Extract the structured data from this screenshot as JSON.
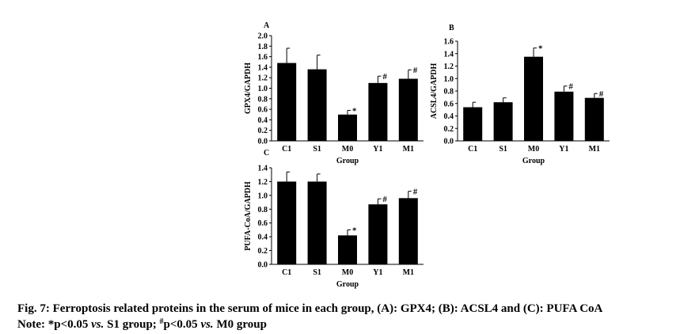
{
  "chart_data": [
    {
      "type": "bar",
      "panel_label": "A",
      "ylabel": "GPX4/GAPDH",
      "xlabel": "Group",
      "categories": [
        "C1",
        "S1",
        "M0",
        "Y1",
        "M1"
      ],
      "values": [
        1.48,
        1.36,
        0.5,
        1.1,
        1.18
      ],
      "errors": [
        0.28,
        0.27,
        0.08,
        0.13,
        0.17
      ],
      "markers": [
        null,
        null,
        "*",
        "#",
        "#"
      ],
      "color": "#000000",
      "ylim": [
        0,
        2
      ],
      "yticks": [
        {
          "value": 0,
          "label": "0.0"
        },
        0.2,
        0.4,
        0.6,
        0.8,
        {
          "value": 1,
          "label": "1.0"
        },
        1.2,
        1.4,
        1.6,
        1.8,
        {
          "value": 2,
          "label": "2.0"
        }
      ]
    },
    {
      "type": "bar",
      "panel_label": "B",
      "ylabel": "ACSL4/GAPDH",
      "xlabel": "Group",
      "categories": [
        "C1",
        "S1",
        "M0",
        "Y1",
        "M1"
      ],
      "values": [
        0.54,
        0.62,
        1.35,
        0.79,
        0.69
      ],
      "errors": [
        0.08,
        0.07,
        0.14,
        0.09,
        0.07
      ],
      "markers": [
        null,
        null,
        "*",
        "#",
        "#"
      ],
      "color": "#000000",
      "ylim": [
        0,
        1.6
      ],
      "yticks": [
        {
          "value": 0,
          "label": "0.0"
        },
        0.2,
        0.4,
        0.6,
        0.8,
        {
          "value": 1,
          "label": "1.0"
        },
        1.2,
        1.4,
        1.6
      ]
    },
    {
      "type": "bar",
      "panel_label": "C",
      "ylabel": "PUFA-CoA/GAPDH",
      "xlabel": "Group",
      "categories": [
        "C1",
        "S1",
        "M0",
        "Y1",
        "M1"
      ],
      "values": [
        1.2,
        1.2,
        0.42,
        0.87,
        0.96
      ],
      "errors": [
        0.14,
        0.11,
        0.08,
        0.08,
        0.1
      ],
      "markers": [
        null,
        null,
        "*",
        "#",
        "#"
      ],
      "color": "#000000",
      "ylim": [
        0,
        1.4
      ],
      "yticks": [
        {
          "value": 0,
          "label": "0.0"
        },
        0.2,
        0.4,
        0.6,
        0.8,
        {
          "value": 1,
          "label": "1.0"
        },
        1.2,
        1.4
      ]
    }
  ],
  "caption": {
    "title": "Fig. 7: Ferroptosis related proteins in the serum of mice in each group, (A): GPX4; (B): ACSL4 and (C): PUFA CoA",
    "note": [
      "Note: *p<0.05 ",
      "vs.",
      " S1 group; ",
      "#",
      "p<0.05 ",
      "vs.",
      " M0 group"
    ]
  }
}
